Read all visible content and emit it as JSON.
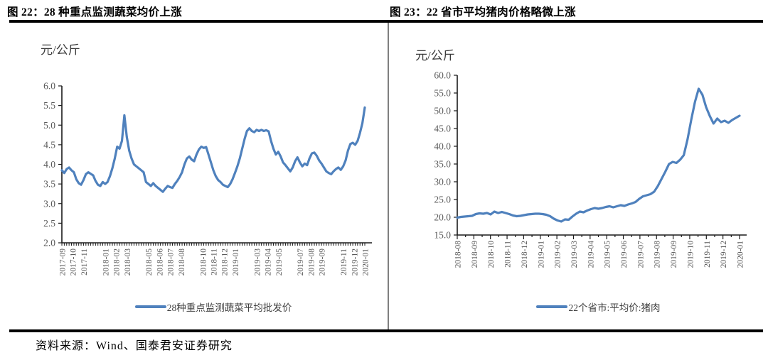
{
  "colors": {
    "series_blue": "#4F81BD",
    "axis": "#1a1a1a",
    "tick_label": "#595959",
    "unit_label": "#3a3a3a",
    "legend_text": "#404040",
    "divider": "#7f7f7f",
    "rule": "#000000"
  },
  "footer": {
    "source": "资料来源：Wind、国泰君安证券研究"
  },
  "chart_data": [
    {
      "type": "line",
      "title": "图 22：28 种重点监测蔬菜均价上涨",
      "unit": "元/公斤",
      "legend": "28种重点监测蔬菜平均批发价",
      "line_color": "#4F81BD",
      "grid": false,
      "legend_position": "bottom",
      "ylim": [
        2.0,
        6.0
      ],
      "ytick_labels": [
        "6.0",
        "5.5",
        "5.0",
        "4.5",
        "4.0",
        "3.5",
        "3.0",
        "2.5",
        "2.0"
      ],
      "x_months": 28,
      "x_start": "2017-09",
      "x_end": "2020-01",
      "xticks": [
        {
          "label": "2017-09",
          "m": 0
        },
        {
          "label": "2017-10",
          "m": 1
        },
        {
          "label": "2017-11",
          "m": 2
        },
        {
          "label": "2018-01",
          "m": 4
        },
        {
          "label": "2018-02",
          "m": 5
        },
        {
          "label": "2018-03",
          "m": 6
        },
        {
          "label": "2018-05",
          "m": 8
        },
        {
          "label": "2018-06",
          "m": 9
        },
        {
          "label": "2018-07",
          "m": 10
        },
        {
          "label": "2018-08",
          "m": 11
        },
        {
          "label": "2018-10",
          "m": 13
        },
        {
          "label": "2018-11",
          "m": 14
        },
        {
          "label": "2018-12",
          "m": 15
        },
        {
          "label": "2019-01",
          "m": 16
        },
        {
          "label": "2019-03",
          "m": 18
        },
        {
          "label": "2019-04",
          "m": 19
        },
        {
          "label": "2019-05",
          "m": 20
        },
        {
          "label": "2019-07",
          "m": 22
        },
        {
          "label": "2019-08",
          "m": 23
        },
        {
          "label": "2019-09",
          "m": 24
        },
        {
          "label": "2019-11",
          "m": 26
        },
        {
          "label": "2019-12",
          "m": 27
        },
        {
          "label": "2020-01",
          "m": 28
        }
      ],
      "series": [
        {
          "name": "28种重点监测蔬菜平均批发价",
          "freq": "weekly",
          "values": [
            3.85,
            3.78,
            3.88,
            3.92,
            3.85,
            3.8,
            3.62,
            3.52,
            3.48,
            3.6,
            3.75,
            3.8,
            3.76,
            3.72,
            3.58,
            3.48,
            3.45,
            3.55,
            3.5,
            3.55,
            3.7,
            3.9,
            4.15,
            4.45,
            4.4,
            4.6,
            5.25,
            4.7,
            4.35,
            4.15,
            4.0,
            3.95,
            3.9,
            3.85,
            3.8,
            3.55,
            3.5,
            3.45,
            3.52,
            3.45,
            3.4,
            3.35,
            3.3,
            3.38,
            3.45,
            3.42,
            3.4,
            3.5,
            3.58,
            3.68,
            3.8,
            4.0,
            4.15,
            4.2,
            4.12,
            4.08,
            4.25,
            4.38,
            4.45,
            4.42,
            4.44,
            4.25,
            4.05,
            3.85,
            3.7,
            3.6,
            3.55,
            3.48,
            3.45,
            3.42,
            3.5,
            3.62,
            3.78,
            3.95,
            4.15,
            4.4,
            4.65,
            4.85,
            4.92,
            4.85,
            4.82,
            4.88,
            4.85,
            4.88,
            4.85,
            4.87,
            4.84,
            4.6,
            4.4,
            4.25,
            4.32,
            4.2,
            4.05,
            3.98,
            3.9,
            3.82,
            3.92,
            4.08,
            4.18,
            4.05,
            3.95,
            4.02,
            3.98,
            4.15,
            4.28,
            4.3,
            4.22,
            4.1,
            4.02,
            3.92,
            3.82,
            3.78,
            3.75,
            3.82,
            3.88,
            3.92,
            3.86,
            3.95,
            4.1,
            4.35,
            4.52,
            4.55,
            4.5,
            4.6,
            4.8,
            5.05,
            5.45
          ]
        }
      ]
    },
    {
      "type": "line",
      "title": "图 23：22 省市平均猪肉价格略微上涨",
      "unit": "元/公斤",
      "legend": "22个省市:平均价:猪肉",
      "line_color": "#4F81BD",
      "grid": false,
      "legend_position": "bottom",
      "ylim": [
        15.0,
        60.0
      ],
      "ytick_labels": [
        "60.0",
        "55.0",
        "50.0",
        "45.0",
        "40.0",
        "35.0",
        "30.0",
        "25.0",
        "20.0",
        "15.0"
      ],
      "x_months": 17,
      "x_start": "2018-08",
      "x_end": "2020-01",
      "xticks": [
        {
          "label": "2018-08",
          "m": 0
        },
        {
          "label": "2018-09",
          "m": 1
        },
        {
          "label": "2018-10",
          "m": 2
        },
        {
          "label": "2018-11",
          "m": 3
        },
        {
          "label": "2018-12",
          "m": 4
        },
        {
          "label": "2019-01",
          "m": 5
        },
        {
          "label": "2019-02",
          "m": 6
        },
        {
          "label": "2019-03",
          "m": 7
        },
        {
          "label": "2019-04",
          "m": 8
        },
        {
          "label": "2019-05",
          "m": 9
        },
        {
          "label": "2019-06",
          "m": 10
        },
        {
          "label": "2019-07",
          "m": 11
        },
        {
          "label": "2019-08",
          "m": 12
        },
        {
          "label": "2019-09",
          "m": 13
        },
        {
          "label": "2019-10",
          "m": 14
        },
        {
          "label": "2019-11",
          "m": 15
        },
        {
          "label": "2019-12",
          "m": 16
        },
        {
          "label": "2020-01",
          "m": 17
        }
      ],
      "series": [
        {
          "name": "22个省市:平均价:猪肉",
          "freq": "weekly",
          "values": [
            19.9,
            20.1,
            20.2,
            20.3,
            20.4,
            20.9,
            21.1,
            21.0,
            21.2,
            20.8,
            21.6,
            21.2,
            21.5,
            21.2,
            20.9,
            20.5,
            20.3,
            20.4,
            20.6,
            20.8,
            20.9,
            21.0,
            21.0,
            20.9,
            20.7,
            20.3,
            19.6,
            19.1,
            18.8,
            19.4,
            19.3,
            20.2,
            21.0,
            21.6,
            21.4,
            21.9,
            22.3,
            22.6,
            22.4,
            22.6,
            22.9,
            23.1,
            22.8,
            23.1,
            23.4,
            23.2,
            23.6,
            23.9,
            24.3,
            25.2,
            25.9,
            26.2,
            26.5,
            27.2,
            28.8,
            30.8,
            32.8,
            35.0,
            35.6,
            35.3,
            36.2,
            37.5,
            42.0,
            47.5,
            52.5,
            56.2,
            54.5,
            51.0,
            48.5,
            46.4,
            47.8,
            46.8,
            47.2,
            46.6,
            47.4,
            48.0,
            48.6
          ]
        }
      ]
    }
  ]
}
